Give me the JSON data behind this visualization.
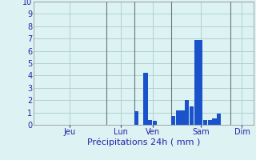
{
  "title": "Précipitations 24h ( mm )",
  "bar_color": "#1a52cc",
  "bg_color": "#ddf2f2",
  "grid_color": "#aacece",
  "axis_label_color": "#2222aa",
  "tick_color": "#2222aa",
  "vline_color": "#667777",
  "ylim": [
    0,
    10
  ],
  "yticks": [
    0,
    1,
    2,
    3,
    4,
    5,
    6,
    7,
    8,
    9,
    10
  ],
  "num_bars": 48,
  "bar_values": [
    0,
    0,
    0,
    0,
    0,
    0,
    0,
    0,
    0,
    0,
    0,
    0,
    0,
    0,
    0,
    0,
    0,
    0,
    0,
    0,
    0,
    0,
    1.1,
    0,
    4.2,
    0.4,
    0.35,
    0,
    0,
    0,
    0.7,
    1.2,
    1.15,
    2.0,
    1.5,
    6.9,
    6.9,
    0.4,
    0.4,
    0.5,
    0.9,
    0,
    0,
    0,
    0,
    0,
    0,
    0
  ],
  "day_labels": [
    "Jeu",
    "Lun",
    "Ven",
    "Sam",
    "Dim"
  ],
  "day_bar_starts": [
    0,
    16,
    22,
    30,
    43
  ],
  "vline_positions": [
    16,
    22,
    30,
    43
  ]
}
